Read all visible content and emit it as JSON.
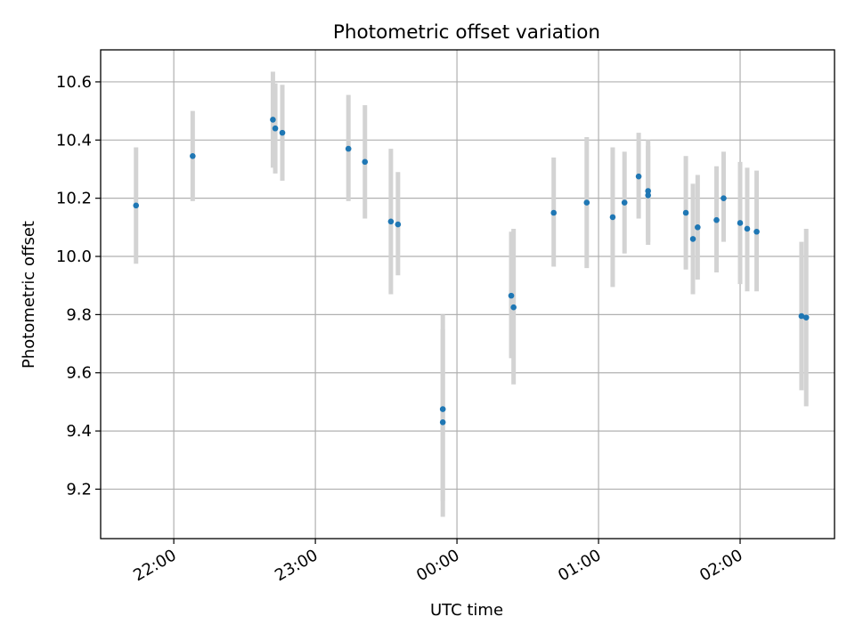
{
  "chart_data": {
    "type": "scatter",
    "title": "Photometric offset variation",
    "xlabel": "UTC time",
    "ylabel": "Photometric offset",
    "x_unit": "UTC time (HH:MM), spanning midnight",
    "xlim": [
      "21:29",
      "02:40"
    ],
    "ylim": [
      9.03,
      10.71
    ],
    "x_ticks": [
      "22:00",
      "23:00",
      "00:00",
      "01:00",
      "02:00"
    ],
    "y_ticks": [
      "9.2",
      "9.4",
      "9.6",
      "9.8",
      "10.0",
      "10.2",
      "10.4",
      "10.6"
    ],
    "grid": true,
    "marker_color": "#1f77b4",
    "errorbar_color": "#d3d3d3",
    "series": [
      {
        "points": [
          {
            "t": "21:44",
            "y": 10.175,
            "lo": 9.975,
            "hi": 10.375
          },
          {
            "t": "22:08",
            "y": 10.345,
            "lo": 10.19,
            "hi": 10.5
          },
          {
            "t": "22:42",
            "y": 10.47,
            "lo": 10.305,
            "hi": 10.635
          },
          {
            "t": "22:43",
            "y": 10.44,
            "lo": 10.285,
            "hi": 10.595
          },
          {
            "t": "22:46",
            "y": 10.425,
            "lo": 10.26,
            "hi": 10.59
          },
          {
            "t": "23:14",
            "y": 10.37,
            "lo": 10.19,
            "hi": 10.555
          },
          {
            "t": "23:21",
            "y": 10.325,
            "lo": 10.13,
            "hi": 10.52
          },
          {
            "t": "23:32",
            "y": 10.12,
            "lo": 9.87,
            "hi": 10.37
          },
          {
            "t": "23:35",
            "y": 10.11,
            "lo": 9.935,
            "hi": 10.29
          },
          {
            "t": "23:54",
            "y": 9.475,
            "lo": 9.16,
            "hi": 9.8
          },
          {
            "t": "23:54",
            "y": 9.43,
            "lo": 9.105,
            "hi": 9.75
          },
          {
            "t": "00:23",
            "y": 9.865,
            "lo": 9.65,
            "hi": 10.085
          },
          {
            "t": "00:24",
            "y": 9.825,
            "lo": 9.56,
            "hi": 10.095
          },
          {
            "t": "00:41",
            "y": 10.15,
            "lo": 9.965,
            "hi": 10.34
          },
          {
            "t": "00:55",
            "y": 10.185,
            "lo": 9.96,
            "hi": 10.41
          },
          {
            "t": "01:06",
            "y": 10.135,
            "lo": 9.895,
            "hi": 10.375
          },
          {
            "t": "01:11",
            "y": 10.185,
            "lo": 10.01,
            "hi": 10.36
          },
          {
            "t": "01:17",
            "y": 10.275,
            "lo": 10.13,
            "hi": 10.425
          },
          {
            "t": "01:21",
            "y": 10.21,
            "lo": 10.04,
            "hi": 10.38
          },
          {
            "t": "01:21",
            "y": 10.225,
            "lo": 10.05,
            "hi": 10.4
          },
          {
            "t": "01:37",
            "y": 10.15,
            "lo": 9.955,
            "hi": 10.345
          },
          {
            "t": "01:40",
            "y": 10.06,
            "lo": 9.87,
            "hi": 10.25
          },
          {
            "t": "01:42",
            "y": 10.1,
            "lo": 9.92,
            "hi": 10.28
          },
          {
            "t": "01:50",
            "y": 10.125,
            "lo": 9.945,
            "hi": 10.31
          },
          {
            "t": "01:53",
            "y": 10.2,
            "lo": 10.05,
            "hi": 10.36
          },
          {
            "t": "02:00",
            "y": 10.115,
            "lo": 9.905,
            "hi": 10.325
          },
          {
            "t": "02:03",
            "y": 10.095,
            "lo": 9.88,
            "hi": 10.305
          },
          {
            "t": "02:07",
            "y": 10.085,
            "lo": 9.88,
            "hi": 10.295
          },
          {
            "t": "02:26",
            "y": 9.795,
            "lo": 9.54,
            "hi": 10.05
          },
          {
            "t": "02:28",
            "y": 9.79,
            "lo": 9.485,
            "hi": 10.095
          }
        ]
      }
    ]
  }
}
